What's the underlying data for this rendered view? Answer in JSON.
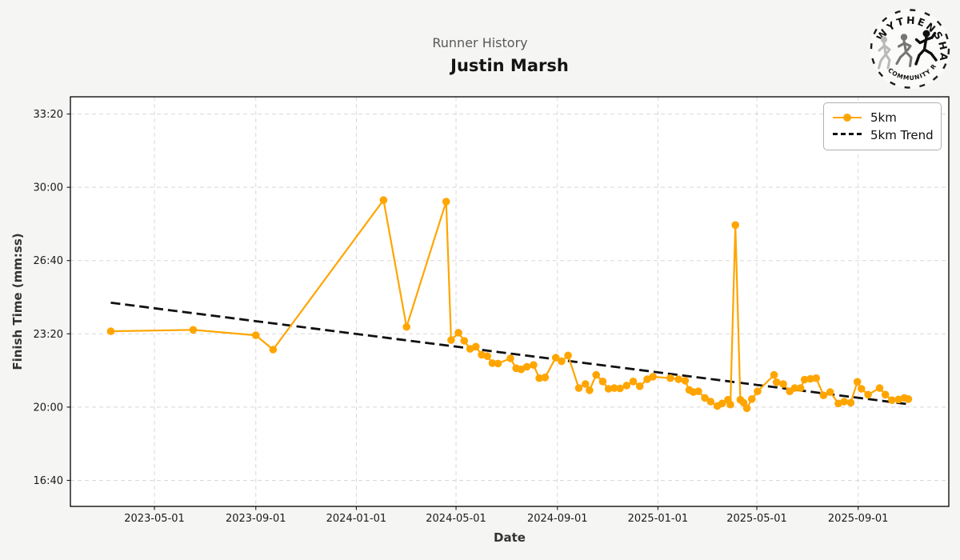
{
  "header": {
    "subtitle": "Runner History",
    "title": "Justin Marsh"
  },
  "logo": {
    "top_text": "WYTHENSHAWE",
    "bottom_text": "COMMUNITY RUN"
  },
  "chart_data": {
    "type": "line",
    "title": "Runner History",
    "subtitle": "Justin Marsh",
    "xlabel": "Date",
    "ylabel": "Finish Time (mm:ss)",
    "grid": true,
    "legend_position": "upper right",
    "x_tick_labels": [
      "2023-05-01",
      "2023-09-01",
      "2024-01-01",
      "2024-05-01",
      "2024-09-01",
      "2025-01-01",
      "2025-05-01",
      "2025-09-01"
    ],
    "y_ticks": [
      {
        "label": "33:20",
        "seconds": 2000
      },
      {
        "label": "30:00",
        "seconds": 1800
      },
      {
        "label": "26:40",
        "seconds": 1600
      },
      {
        "label": "23:20",
        "seconds": 1400
      },
      {
        "label": "20:00",
        "seconds": 1200
      },
      {
        "label": "16:40",
        "seconds": 1000
      }
    ],
    "xlim": [
      "2023-01-19",
      "2025-12-20"
    ],
    "ylim_seconds": [
      929,
      2047
    ],
    "colors": {
      "series": "#FFA500",
      "trend": "#111111",
      "grid": "#d8d8d8"
    },
    "series": [
      {
        "name": "5km",
        "color": "#FFA500",
        "points": [
          [
            "2023-03-09",
            "23:27"
          ],
          [
            "2023-06-17",
            "23:31"
          ],
          [
            "2023-09-01",
            "23:16"
          ],
          [
            "2023-09-22",
            "22:37"
          ],
          [
            "2024-02-03",
            "29:25"
          ],
          [
            "2024-03-02",
            "23:39"
          ],
          [
            "2024-04-19",
            "29:21"
          ],
          [
            "2024-04-25",
            "23:03"
          ],
          [
            "2024-05-04",
            "23:23"
          ],
          [
            "2024-05-11",
            "23:01"
          ],
          [
            "2024-05-18",
            "22:39"
          ],
          [
            "2024-05-25",
            "22:45"
          ],
          [
            "2024-06-01",
            "22:23"
          ],
          [
            "2024-06-08",
            "22:19"
          ],
          [
            "2024-06-14",
            "22:00"
          ],
          [
            "2024-06-21",
            "21:59"
          ],
          [
            "2024-07-06",
            "22:13"
          ],
          [
            "2024-07-13",
            "21:46"
          ],
          [
            "2024-07-19",
            "21:43"
          ],
          [
            "2024-07-26",
            "21:50"
          ],
          [
            "2024-08-03",
            "21:55"
          ],
          [
            "2024-08-10",
            "21:19"
          ],
          [
            "2024-08-17",
            "21:21"
          ],
          [
            "2024-08-30",
            "22:15"
          ],
          [
            "2024-09-06",
            "22:05"
          ],
          [
            "2024-09-14",
            "22:21"
          ],
          [
            "2024-09-27",
            "20:52"
          ],
          [
            "2024-10-05",
            "21:03"
          ],
          [
            "2024-10-10",
            "20:46"
          ],
          [
            "2024-10-18",
            "21:28"
          ],
          [
            "2024-10-26",
            "21:10"
          ],
          [
            "2024-11-02",
            "20:50"
          ],
          [
            "2024-11-09",
            "20:52"
          ],
          [
            "2024-11-16",
            "20:51"
          ],
          [
            "2024-11-24",
            "20:59"
          ],
          [
            "2024-12-02",
            "21:10"
          ],
          [
            "2024-12-10",
            "20:57"
          ],
          [
            "2024-12-19",
            "21:16"
          ],
          [
            "2024-12-26",
            "21:23"
          ],
          [
            "2025-01-16",
            "21:19"
          ],
          [
            "2025-01-26",
            "21:16"
          ],
          [
            "2025-02-03",
            "21:12"
          ],
          [
            "2025-02-08",
            "20:47"
          ],
          [
            "2025-02-13",
            "20:41"
          ],
          [
            "2025-02-19",
            "20:43"
          ],
          [
            "2025-02-27",
            "20:25"
          ],
          [
            "2025-03-06",
            "20:15"
          ],
          [
            "2025-03-14",
            "20:03"
          ],
          [
            "2025-03-20",
            "20:10"
          ],
          [
            "2025-03-27",
            "20:20"
          ],
          [
            "2025-03-30",
            "20:07"
          ],
          [
            "2025-04-05",
            "28:17"
          ],
          [
            "2025-04-11",
            "20:20"
          ],
          [
            "2025-04-15",
            "20:12"
          ],
          [
            "2025-04-19",
            "19:57"
          ],
          [
            "2025-04-25",
            "20:22"
          ],
          [
            "2025-05-02",
            "20:43"
          ],
          [
            "2025-05-22",
            "21:28"
          ],
          [
            "2025-05-25",
            "21:08"
          ],
          [
            "2025-06-02",
            "21:03"
          ],
          [
            "2025-06-10",
            "20:43"
          ],
          [
            "2025-06-16",
            "20:52"
          ],
          [
            "2025-06-23",
            "20:52"
          ],
          [
            "2025-06-28",
            "21:15"
          ],
          [
            "2025-07-05",
            "21:17"
          ],
          [
            "2025-07-12",
            "21:19"
          ],
          [
            "2025-07-21",
            "20:32"
          ],
          [
            "2025-07-29",
            "20:41"
          ],
          [
            "2025-08-08",
            "20:10"
          ],
          [
            "2025-08-15",
            "20:15"
          ],
          [
            "2025-08-23",
            "20:12"
          ],
          [
            "2025-08-31",
            "21:09"
          ],
          [
            "2025-09-05",
            "20:50"
          ],
          [
            "2025-09-13",
            "20:34"
          ],
          [
            "2025-09-27",
            "20:52"
          ],
          [
            "2025-10-04",
            "20:34"
          ],
          [
            "2025-10-12",
            "20:19"
          ],
          [
            "2025-10-20",
            "20:21"
          ],
          [
            "2025-10-27",
            "20:25"
          ],
          [
            "2025-11-01",
            "20:22"
          ]
        ]
      }
    ],
    "trend": {
      "name": "5km Trend",
      "color": "#111111",
      "style": "dashed",
      "start": [
        "2023-03-09",
        "24:45"
      ],
      "end": [
        "2025-11-01",
        "20:08"
      ]
    }
  }
}
